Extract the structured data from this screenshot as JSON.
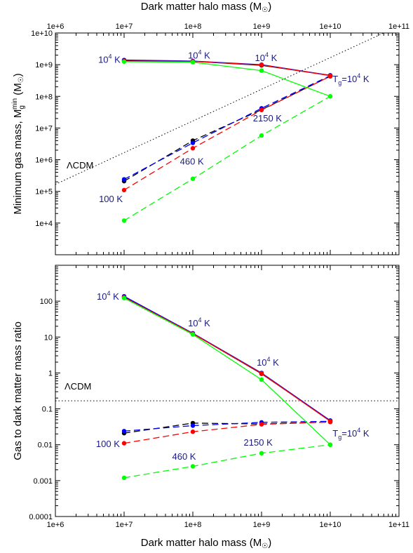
{
  "top_axis_label": "Dark matter halo mass (M",
  "bottom_axis_label": "Dark matter halo mass (M",
  "x_tick_labels": [
    "1e+6",
    "1e+7",
    "1e+8",
    "1e+9",
    "1e+10",
    "1e+11"
  ],
  "chart_data": [
    {
      "type": "line",
      "panel": "top",
      "ylabel": "Minimum gas mass, M",
      "ylabel_sub": "g",
      "ylabel_sup": "min",
      "ylabel_tail": " (M",
      "xscale": "log",
      "yscale": "log",
      "xlim": [
        1000000.0,
        100000000000.0
      ],
      "ylim": [
        1000.0,
        10000000000.0
      ],
      "y_tick_labels": [
        "1e+10",
        "1e+9",
        "1e+8",
        "1e+7",
        "1e+6",
        "1e+5",
        "1e+4"
      ],
      "y_tick_values": [
        10000000000.0,
        1000000000.0,
        100000000.0,
        10000000.0,
        1000000.0,
        100000.0,
        10000.0
      ],
      "x": [
        10000000.0,
        100000000.0,
        1000000000.0,
        10000000000.0
      ],
      "series": [
        {
          "color": "#000000",
          "dash": false,
          "values": [
            1350000000.0,
            1280000000.0,
            950000000.0,
            460000000.0
          ]
        },
        {
          "color": "#0000ff",
          "dash": false,
          "values": [
            1400000000.0,
            1300000000.0,
            1000000000.0,
            460000000.0
          ]
        },
        {
          "color": "#ff0000",
          "dash": false,
          "values": [
            1300000000.0,
            1270000000.0,
            980000000.0,
            450000000.0
          ]
        },
        {
          "color": "#00ff00",
          "dash": false,
          "values": [
            1250000000.0,
            1200000000.0,
            650000000.0,
            100000000.0
          ]
        },
        {
          "color": "#000000",
          "dash": true,
          "values": [
            210000.0,
            4000000.0,
            38000000.0,
            430000000.0
          ]
        },
        {
          "color": "#0000ff",
          "dash": true,
          "values": [
            240000.0,
            3400000.0,
            42000000.0,
            450000000.0
          ]
        },
        {
          "color": "#ff0000",
          "dash": true,
          "values": [
            110000.0,
            2300000.0,
            37000000.0,
            430000000.0
          ]
        },
        {
          "color": "#00ff00",
          "dash": true,
          "values": [
            12000.0,
            250000.0,
            5800000.0,
            100000000.0
          ]
        }
      ],
      "reference_line": {
        "label": "ΛCDM",
        "x": [
          1000000.0,
          100000000000.0
        ],
        "values": [
          167000.0,
          16700000000.0
        ]
      },
      "annotations": [
        {
          "text": "10",
          "sup": "4",
          "tail": " K",
          "x": 4200000.0,
          "y": 1150000000.0
        },
        {
          "text": "10",
          "sup": "4",
          "tail": " K",
          "x": 85000000.0,
          "y": 1550000000.0
        },
        {
          "text": "10",
          "sup": "4",
          "tail": " K",
          "x": 800000000.0,
          "y": 1300000000.0
        },
        {
          "text": "T",
          "sub": "g",
          "tail": "=10",
          "sup": "4",
          "tail2": " K",
          "x": 10800000000.0,
          "y": 280000000.0
        },
        {
          "text": "2150 K",
          "x": 750000000.0,
          "y": 16000000.0
        },
        {
          "text": "460 K",
          "x": 65000000.0,
          "y": 700000.0
        },
        {
          "text": "100 K",
          "x": 4300000.0,
          "y": 46000.0
        }
      ]
    },
    {
      "type": "line",
      "panel": "bottom",
      "ylabel": "Gas to dark matter mass ratio",
      "xscale": "log",
      "yscale": "log",
      "xlim": [
        1000000.0,
        100000000000.0
      ],
      "ylim": [
        0.0001,
        1000.0
      ],
      "y_tick_labels": [
        "100",
        "10",
        "1",
        "0.1",
        "0.01",
        "0.001",
        "0.0001"
      ],
      "y_tick_values": [
        100,
        10,
        1,
        0.1,
        0.01,
        0.001,
        0.0001
      ],
      "x": [
        10000000.0,
        100000000.0,
        1000000000.0,
        10000000000.0
      ],
      "series": [
        {
          "color": "#000000",
          "dash": false,
          "values": [
            130,
            12.5,
            0.95,
            0.047
          ]
        },
        {
          "color": "#0000ff",
          "dash": false,
          "values": [
            137,
            12.8,
            1.0,
            0.047
          ]
        },
        {
          "color": "#ff0000",
          "dash": false,
          "values": [
            128,
            12.4,
            0.97,
            0.045
          ]
        },
        {
          "color": "#00ff00",
          "dash": false,
          "values": [
            122,
            11.8,
            0.65,
            0.01
          ]
        },
        {
          "color": "#000000",
          "dash": true,
          "values": [
            0.021,
            0.04,
            0.038,
            0.043
          ]
        },
        {
          "color": "#0000ff",
          "dash": true,
          "values": [
            0.024,
            0.034,
            0.042,
            0.045
          ]
        },
        {
          "color": "#ff0000",
          "dash": true,
          "values": [
            0.011,
            0.023,
            0.037,
            0.043
          ]
        },
        {
          "color": "#00ff00",
          "dash": true,
          "values": [
            0.0012,
            0.0025,
            0.0058,
            0.01
          ]
        }
      ],
      "reference_line": {
        "label": "ΛCDM",
        "x": [
          1000000.0,
          100000000000.0
        ],
        "values": [
          0.167,
          0.167
        ]
      },
      "annotations": [
        {
          "text": "10",
          "sup": "4",
          "tail": " K",
          "x": 4000000.0,
          "y": 110
        },
        {
          "text": "10",
          "sup": "4",
          "tail": " K",
          "x": 85000000.0,
          "y": 20
        },
        {
          "text": "10",
          "sup": "4",
          "tail": " K",
          "x": 850000000.0,
          "y": 1.6
        },
        {
          "text": "T",
          "sub": "g",
          "tail": "=10",
          "sup": "4",
          "tail2": " K",
          "x": 10800000000.0,
          "y": 0.017
        },
        {
          "text": "2150 K",
          "x": 550000000.0,
          "y": 0.0095
        },
        {
          "text": "460 K",
          "x": 50000000.0,
          "y": 0.0038
        },
        {
          "text": "100 K",
          "x": 3900000.0,
          "y": 0.0086
        }
      ]
    }
  ]
}
